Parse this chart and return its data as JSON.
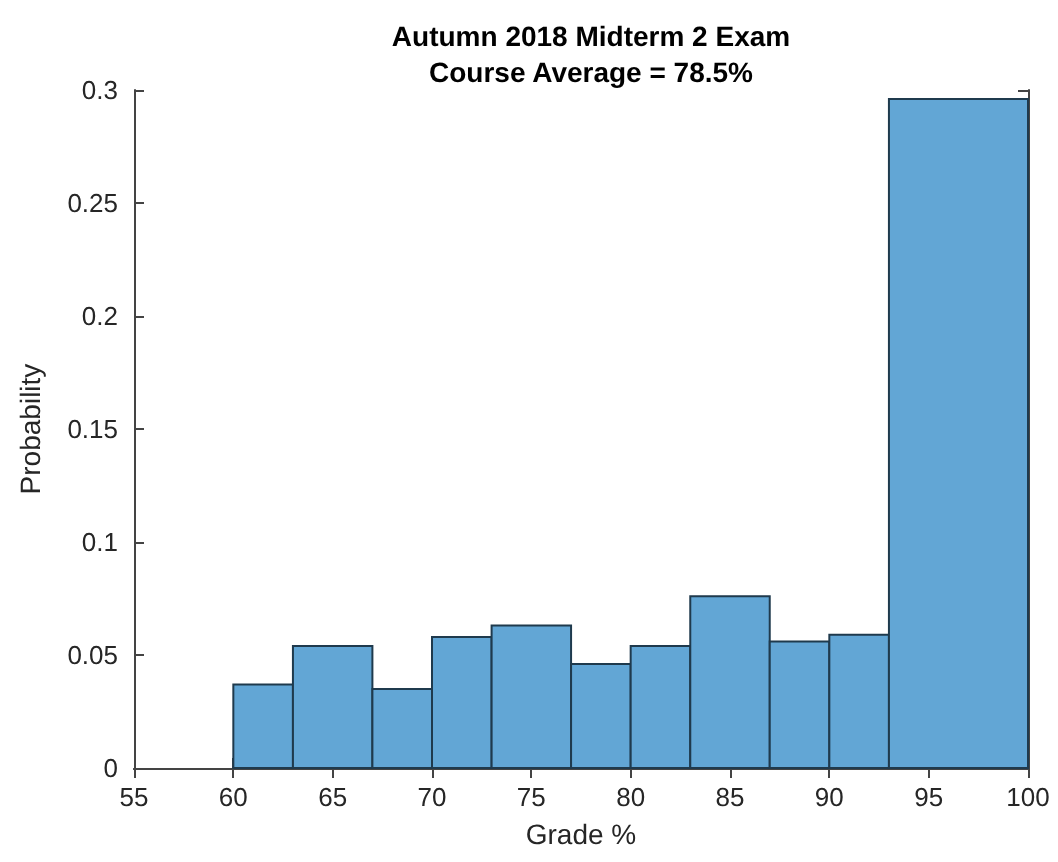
{
  "chart_data": {
    "type": "histogram",
    "title": "Autumn 2018 Midterm 2 Exam",
    "subtitle": "Course Average = 78.5%",
    "xlabel": "Grade %",
    "ylabel": "Probability",
    "bins": [
      60,
      63,
      67,
      70,
      73,
      77,
      80,
      83,
      87,
      90,
      93,
      100
    ],
    "values": [
      0.037,
      0.054,
      0.035,
      0.058,
      0.063,
      0.046,
      0.054,
      0.076,
      0.056,
      0.059,
      0.296
    ],
    "color": "#62a6d5",
    "xlim": [
      55,
      100
    ],
    "xticks": [
      55,
      60,
      65,
      70,
      75,
      80,
      85,
      90,
      95,
      100
    ],
    "ylim": [
      0,
      0.3
    ],
    "yticks": [
      0,
      0.05,
      0.1,
      0.15,
      0.2,
      0.25,
      0.3
    ],
    "grid": false
  }
}
